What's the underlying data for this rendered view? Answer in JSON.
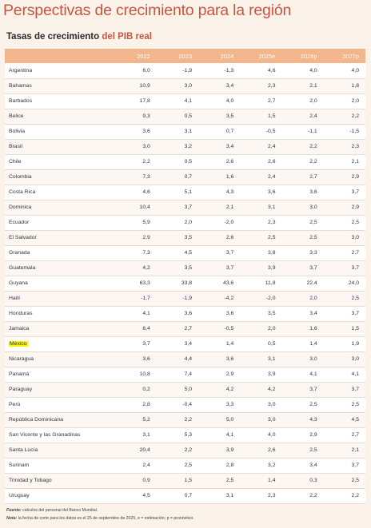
{
  "page": {
    "title": "Perspectivas de crecimiento para la región",
    "subtitle_prefix": "Tasas de crecimiento ",
    "subtitle_accent": "del PIB real"
  },
  "table": {
    "headers": [
      "",
      "2022",
      "2023",
      "2024",
      "2025e",
      "2026p",
      "2027p"
    ],
    "rows": [
      [
        "Argentina",
        "6,0",
        "-1,9",
        "-1,3",
        "4,6",
        "4,0",
        "4,0"
      ],
      [
        "Bahamas",
        "10,9",
        "3,0",
        "3,4",
        "2,3",
        "2,1",
        "1,8"
      ],
      [
        "Barbados",
        "17,8",
        "4,1",
        "4,0",
        "2,7",
        "2,0",
        "2,0"
      ],
      [
        "Belice",
        "9,3",
        "0,5",
        "3,5",
        "1,5",
        "2,4",
        "2,2"
      ],
      [
        "Bolivia",
        "3,6",
        "3,1",
        "0,7",
        "-0,5",
        "-1,1",
        "-1,5"
      ],
      [
        "Brasil",
        "3,0",
        "3,2",
        "3,4",
        "2,4",
        "2,2",
        "2,3"
      ],
      [
        "Chile",
        "2,2",
        "0,5",
        "2,6",
        "2,6",
        "2,2",
        "2,1"
      ],
      [
        "Colombia",
        "7,3",
        "0,7",
        "1,6",
        "2,4",
        "2,7",
        "2,9"
      ],
      [
        "Costa Rica",
        "4,6",
        "5,1",
        "4,3",
        "3,6",
        "3,6",
        "3,7"
      ],
      [
        "Dominica",
        "10,4",
        "3,7",
        "2,1",
        "3,1",
        "3,0",
        "2,9"
      ],
      [
        "Ecuador",
        "5,9",
        "2,0",
        "-2,0",
        "2,3",
        "2,5",
        "2,5"
      ],
      [
        "El Salvador",
        "2,9",
        "3,5",
        "2,6",
        "2,5",
        "2,5",
        "3,0"
      ],
      [
        "Granada",
        "7,3",
        "4,5",
        "3,7",
        "3,8",
        "3,3",
        "2,7"
      ],
      [
        "Guatemala",
        "4,2",
        "3,5",
        "3,7",
        "3,9",
        "3,7",
        "3,7"
      ],
      [
        "Guyana",
        "63,3",
        "33,8",
        "43,6",
        "11,8",
        "22,4",
        "24,0"
      ],
      [
        "Haití",
        "-1,7",
        "-1,9",
        "-4,2",
        "-2,0",
        "2,0",
        "2,5"
      ],
      [
        "Honduras",
        "4,1",
        "3,6",
        "3,6",
        "3,5",
        "3,4",
        "3,7"
      ],
      [
        "Jamaica",
        "6,4",
        "2,7",
        "-0,5",
        "2,0",
        "1,6",
        "1,5"
      ],
      [
        "México",
        "3,7",
        "3,4",
        "1,4",
        "0,5",
        "1,4",
        "1,9"
      ],
      [
        "Nicaragua",
        "3,6",
        "4,4",
        "3,6",
        "3,1",
        "3,0",
        "3,0"
      ],
      [
        "Panamá",
        "10,8",
        "7,4",
        "2,9",
        "3,9",
        "4,1",
        "4,1"
      ],
      [
        "Paraguay",
        "0,2",
        "5,0",
        "4,2",
        "4,2",
        "3,7",
        "3,7"
      ],
      [
        "Perú",
        "2,8",
        "-0,4",
        "3,3",
        "3,0",
        "2,5",
        "2,5"
      ],
      [
        "República Dominicana",
        "5,2",
        "2,2",
        "5,0",
        "3,0",
        "4,3",
        "4,5"
      ],
      [
        "San Vicente y las Granadinas",
        "3,1",
        "5,3",
        "4,1",
        "4,0",
        "2,9",
        "2,7"
      ],
      [
        "Santa Lucía",
        "20,4",
        "2,2",
        "3,9",
        "2,6",
        "2,5",
        "2,1"
      ],
      [
        "Surinam",
        "2,4",
        "2,5",
        "2,8",
        "3,2",
        "3,4",
        "3,7"
      ],
      [
        "Trinidad y Tobago",
        "0,9",
        "1,5",
        "2,5",
        "1,4",
        "0,3",
        "2,5"
      ],
      [
        "Uruguay",
        "4,5",
        "0,7",
        "3,1",
        "2,3",
        "2,2",
        "2,2"
      ]
    ],
    "highlighted_row": "México"
  },
  "footnotes": {
    "source_label": "Fuente:",
    "source_text": " cálculos del personal del Banco Mundial.",
    "note_label": "Nota:",
    "note_text": " la fecha de corte para los datos es el 25 de septiembre de 2025, e = estimación; p = pronóstico."
  },
  "colors": {
    "title": "#c8553d",
    "header_bg": "#f3b58b",
    "page_bg": "#fbf2ea",
    "highlight": "#fff200"
  }
}
